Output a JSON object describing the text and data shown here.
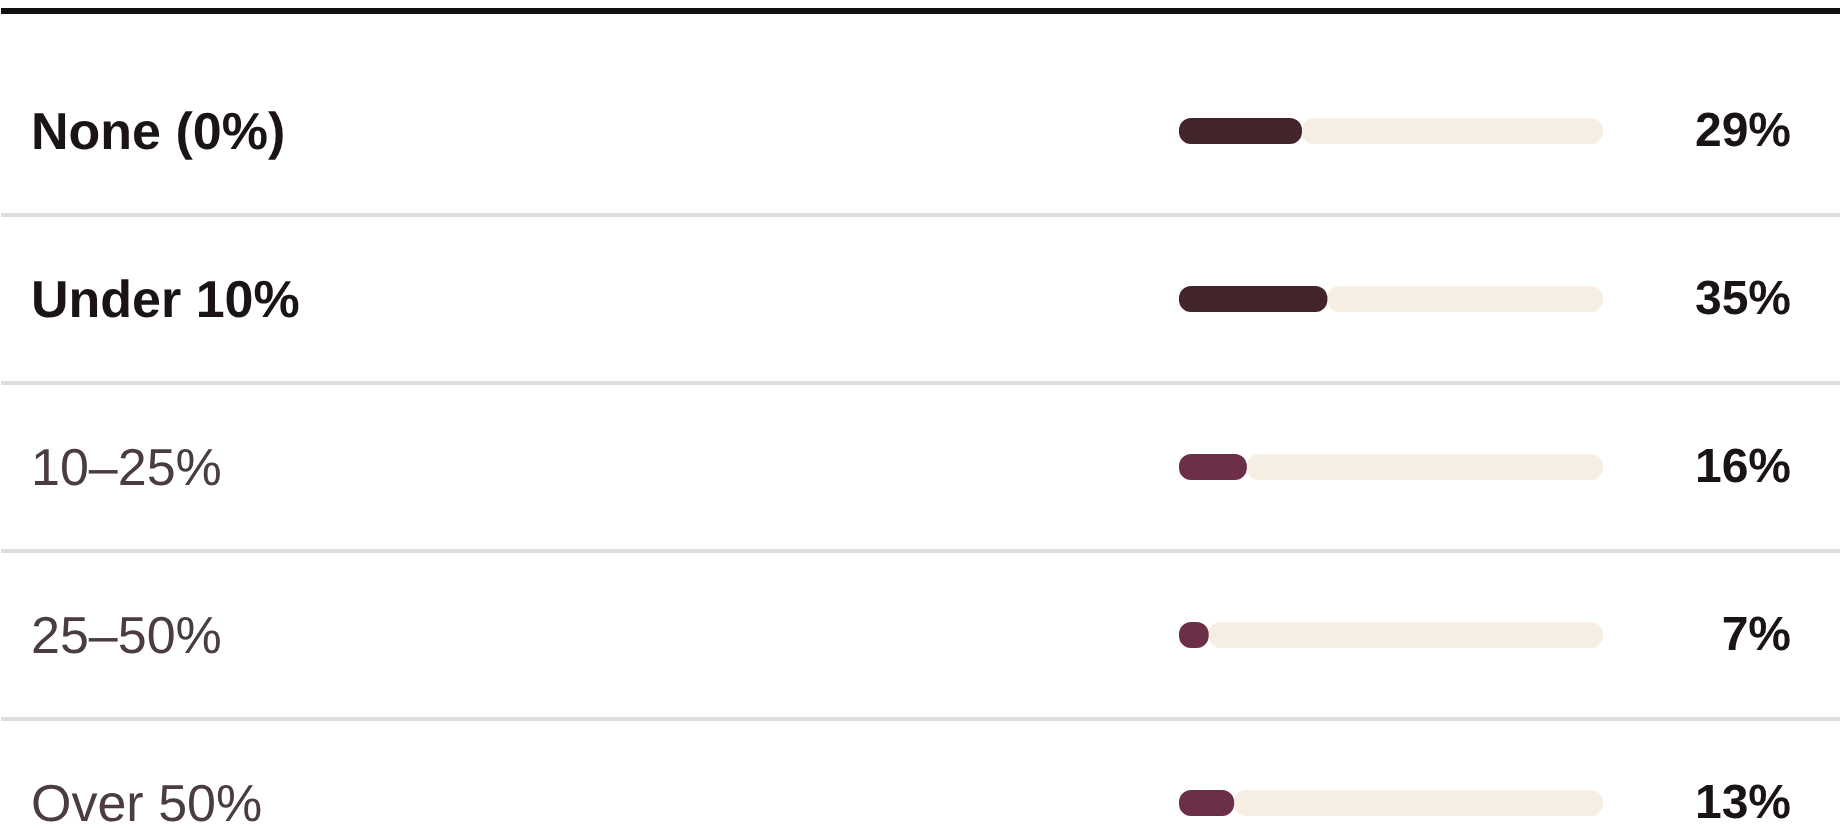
{
  "chart_data": {
    "type": "bar",
    "orientation": "horizontal",
    "stacked": true,
    "grid": false,
    "tick_labels": false,
    "xlim": [
      0,
      100
    ],
    "categories": [
      "None (0%)",
      "Under 10%",
      "10–25%",
      "25–50%",
      "Over 50%"
    ],
    "series": [
      {
        "colors": [
          "#42242b",
          "#42242b",
          "#6b2f48",
          "#6b2f48",
          "#6b2f48"
        ],
        "values": [
          29,
          35,
          16,
          7,
          13
        ],
        "value_labels": [
          "29%",
          "35%",
          "16%",
          "7%",
          "13%"
        ]
      },
      {
        "color": "#f6eee2",
        "values": [
          71,
          65,
          84,
          93,
          87
        ]
      }
    ]
  }
}
